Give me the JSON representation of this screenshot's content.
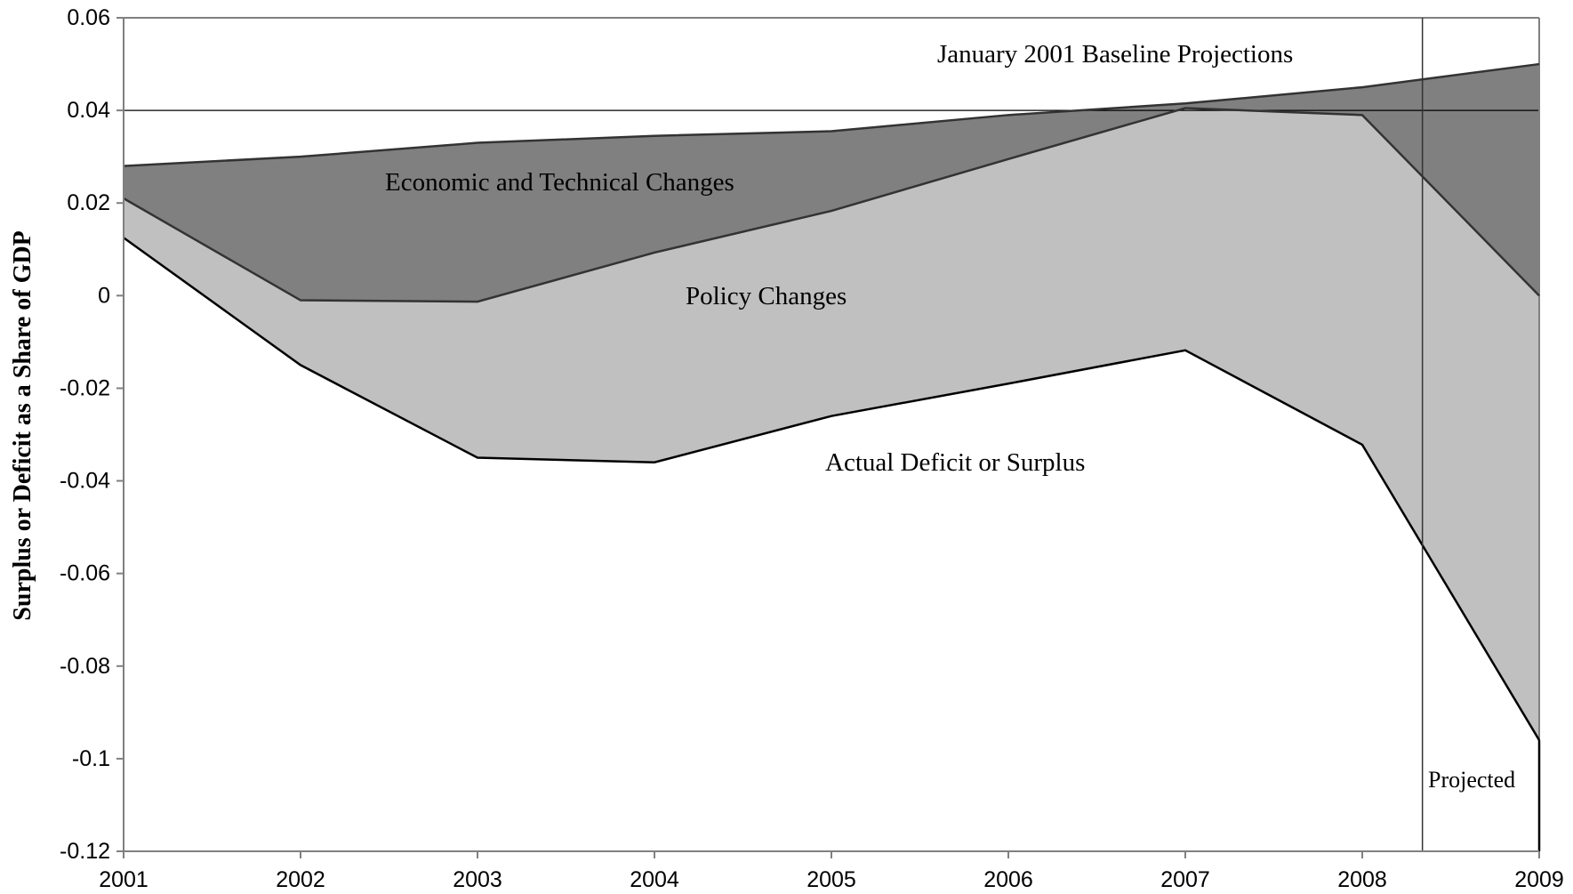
{
  "chart_data": {
    "type": "area",
    "title": "",
    "xlabel": "",
    "ylabel": "Surplus or Deficit as a Share of GDP",
    "x": [
      2001,
      2002,
      2003,
      2004,
      2005,
      2006,
      2007,
      2008,
      2009
    ],
    "xlim": [
      2001,
      2009
    ],
    "ylim": [
      -0.12,
      0.06
    ],
    "yticks": [
      "0.06",
      "0.04",
      "0.02",
      "0",
      "-0.02",
      "-0.04",
      "-0.06",
      "-0.08",
      "-0.1",
      "-0.12"
    ],
    "yticks_values": [
      0.06,
      0.04,
      0.02,
      0,
      -0.02,
      -0.04,
      -0.06,
      -0.08,
      -0.1,
      -0.12
    ],
    "xticks": [
      "2001",
      "2002",
      "2003",
      "2004",
      "2005",
      "2006",
      "2007",
      "2008",
      "2009"
    ],
    "grid": false,
    "reference_line_y": 0.04,
    "projected_divider_x": 2008.34,
    "series": [
      {
        "key": "baseline",
        "color": "#808080",
        "values": [
          0.028,
          0.03,
          0.033,
          0.0345,
          0.0355,
          0.039,
          0.0415,
          0.045,
          0.05
        ]
      },
      {
        "key": "policy",
        "color": "#c0c0c0",
        "values": [
          0.021,
          -0.001,
          -0.0013,
          0.0093,
          0.0183,
          0.0295,
          0.0405,
          0.039,
          0.0
        ]
      },
      {
        "key": "actual",
        "values": [
          0.0125,
          -0.015,
          -0.035,
          -0.036,
          -0.026,
          -0.019,
          -0.0118,
          -0.0322,
          -0.096
        ]
      }
    ],
    "annotations": [
      {
        "key": "baseline_label",
        "text": "January 2001 Baseline Projections"
      },
      {
        "key": "econ_label",
        "text": "Economic and Technical Changes"
      },
      {
        "key": "policy_label",
        "text": "Policy Changes"
      },
      {
        "key": "actual_label",
        "text": "Actual Deficit or Surplus"
      },
      {
        "key": "projected_label",
        "text": "Projected"
      }
    ],
    "colors": {
      "axis": "#808080",
      "line": "#000000",
      "edge_dark": "#333333"
    }
  }
}
